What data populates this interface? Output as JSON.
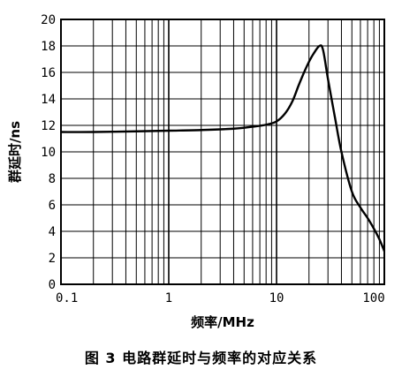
{
  "caption": "图 3  电路群延时与频率的对应关系",
  "chart_data": {
    "type": "line",
    "title": "",
    "xlabel": "频率/MHz",
    "ylabel": "群延时/ns",
    "x_scale": "log",
    "xlim": [
      0.1,
      100
    ],
    "ylim": [
      0,
      20
    ],
    "x_ticks": [
      0.1,
      1,
      10,
      100
    ],
    "x_tick_labels": [
      "0.1",
      "1",
      "10",
      "100"
    ],
    "y_ticks": [
      0,
      2,
      4,
      6,
      8,
      10,
      12,
      14,
      16,
      18,
      20
    ],
    "y_tick_labels": [
      "0",
      "2",
      "4",
      "6",
      "8",
      "10",
      "12",
      "14",
      "16",
      "18",
      "20"
    ],
    "grid": true,
    "legend": "none",
    "series": [
      {
        "x": [
          0.1,
          0.2,
          0.5,
          1,
          2,
          4,
          6,
          8,
          10,
          12,
          14,
          16,
          18,
          20,
          22,
          25,
          27,
          30,
          35,
          40,
          50,
          60,
          70,
          80,
          90,
          100
        ],
        "y": [
          11.5,
          11.5,
          11.55,
          11.6,
          11.65,
          11.75,
          11.9,
          12.05,
          12.3,
          12.9,
          13.8,
          15.0,
          16.0,
          16.8,
          17.4,
          18.0,
          17.7,
          15.5,
          12.5,
          10.0,
          7.0,
          5.8,
          5.0,
          4.2,
          3.4,
          2.5
        ]
      }
    ]
  }
}
